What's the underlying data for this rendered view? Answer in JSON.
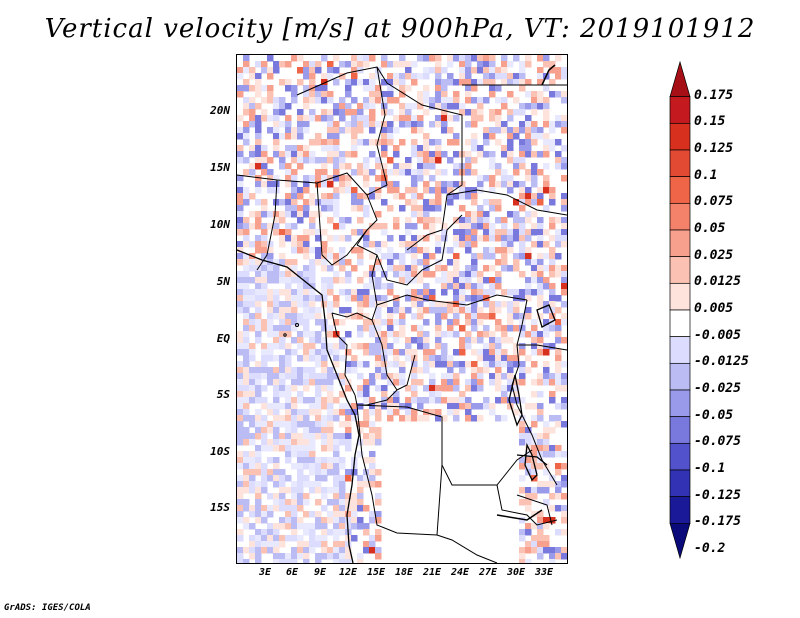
{
  "title": "Vertical velocity [m/s] at 900hPa, VT: 2019101912",
  "footer": "GrADS: IGES/COLA",
  "y_axis_labels": [
    "20N",
    "15N",
    "10N",
    "5N",
    "EQ",
    "5S",
    "10S",
    "15S"
  ],
  "x_axis_labels": [
    "3E",
    "6E",
    "9E",
    "12E",
    "15E",
    "18E",
    "21E",
    "24E",
    "27E",
    "30E",
    "33E"
  ],
  "colorbar": {
    "levels": [
      "0.175",
      "0.15",
      "0.125",
      "0.1",
      "0.075",
      "0.05",
      "0.025",
      "0.0125",
      "0.005",
      "-0.005",
      "-0.0125",
      "-0.025",
      "-0.05",
      "-0.075",
      "-0.1",
      "-0.125",
      "-0.175",
      "-0.2"
    ],
    "colors": [
      "#a50f15",
      "#c41a1f",
      "#d7301f",
      "#e34a33",
      "#ef6548",
      "#f4826a",
      "#f7a08e",
      "#fbc1b3",
      "#fde3dc",
      "#ffffff",
      "#dcdcff",
      "#bcbcf5",
      "#9a9aeb",
      "#7878dd",
      "#5252cc",
      "#3232b4",
      "#1a1a99",
      "#0a0a7a"
    ]
  },
  "lat_range": [
    -20,
    24
  ],
  "lon_range": [
    0,
    35
  ]
}
